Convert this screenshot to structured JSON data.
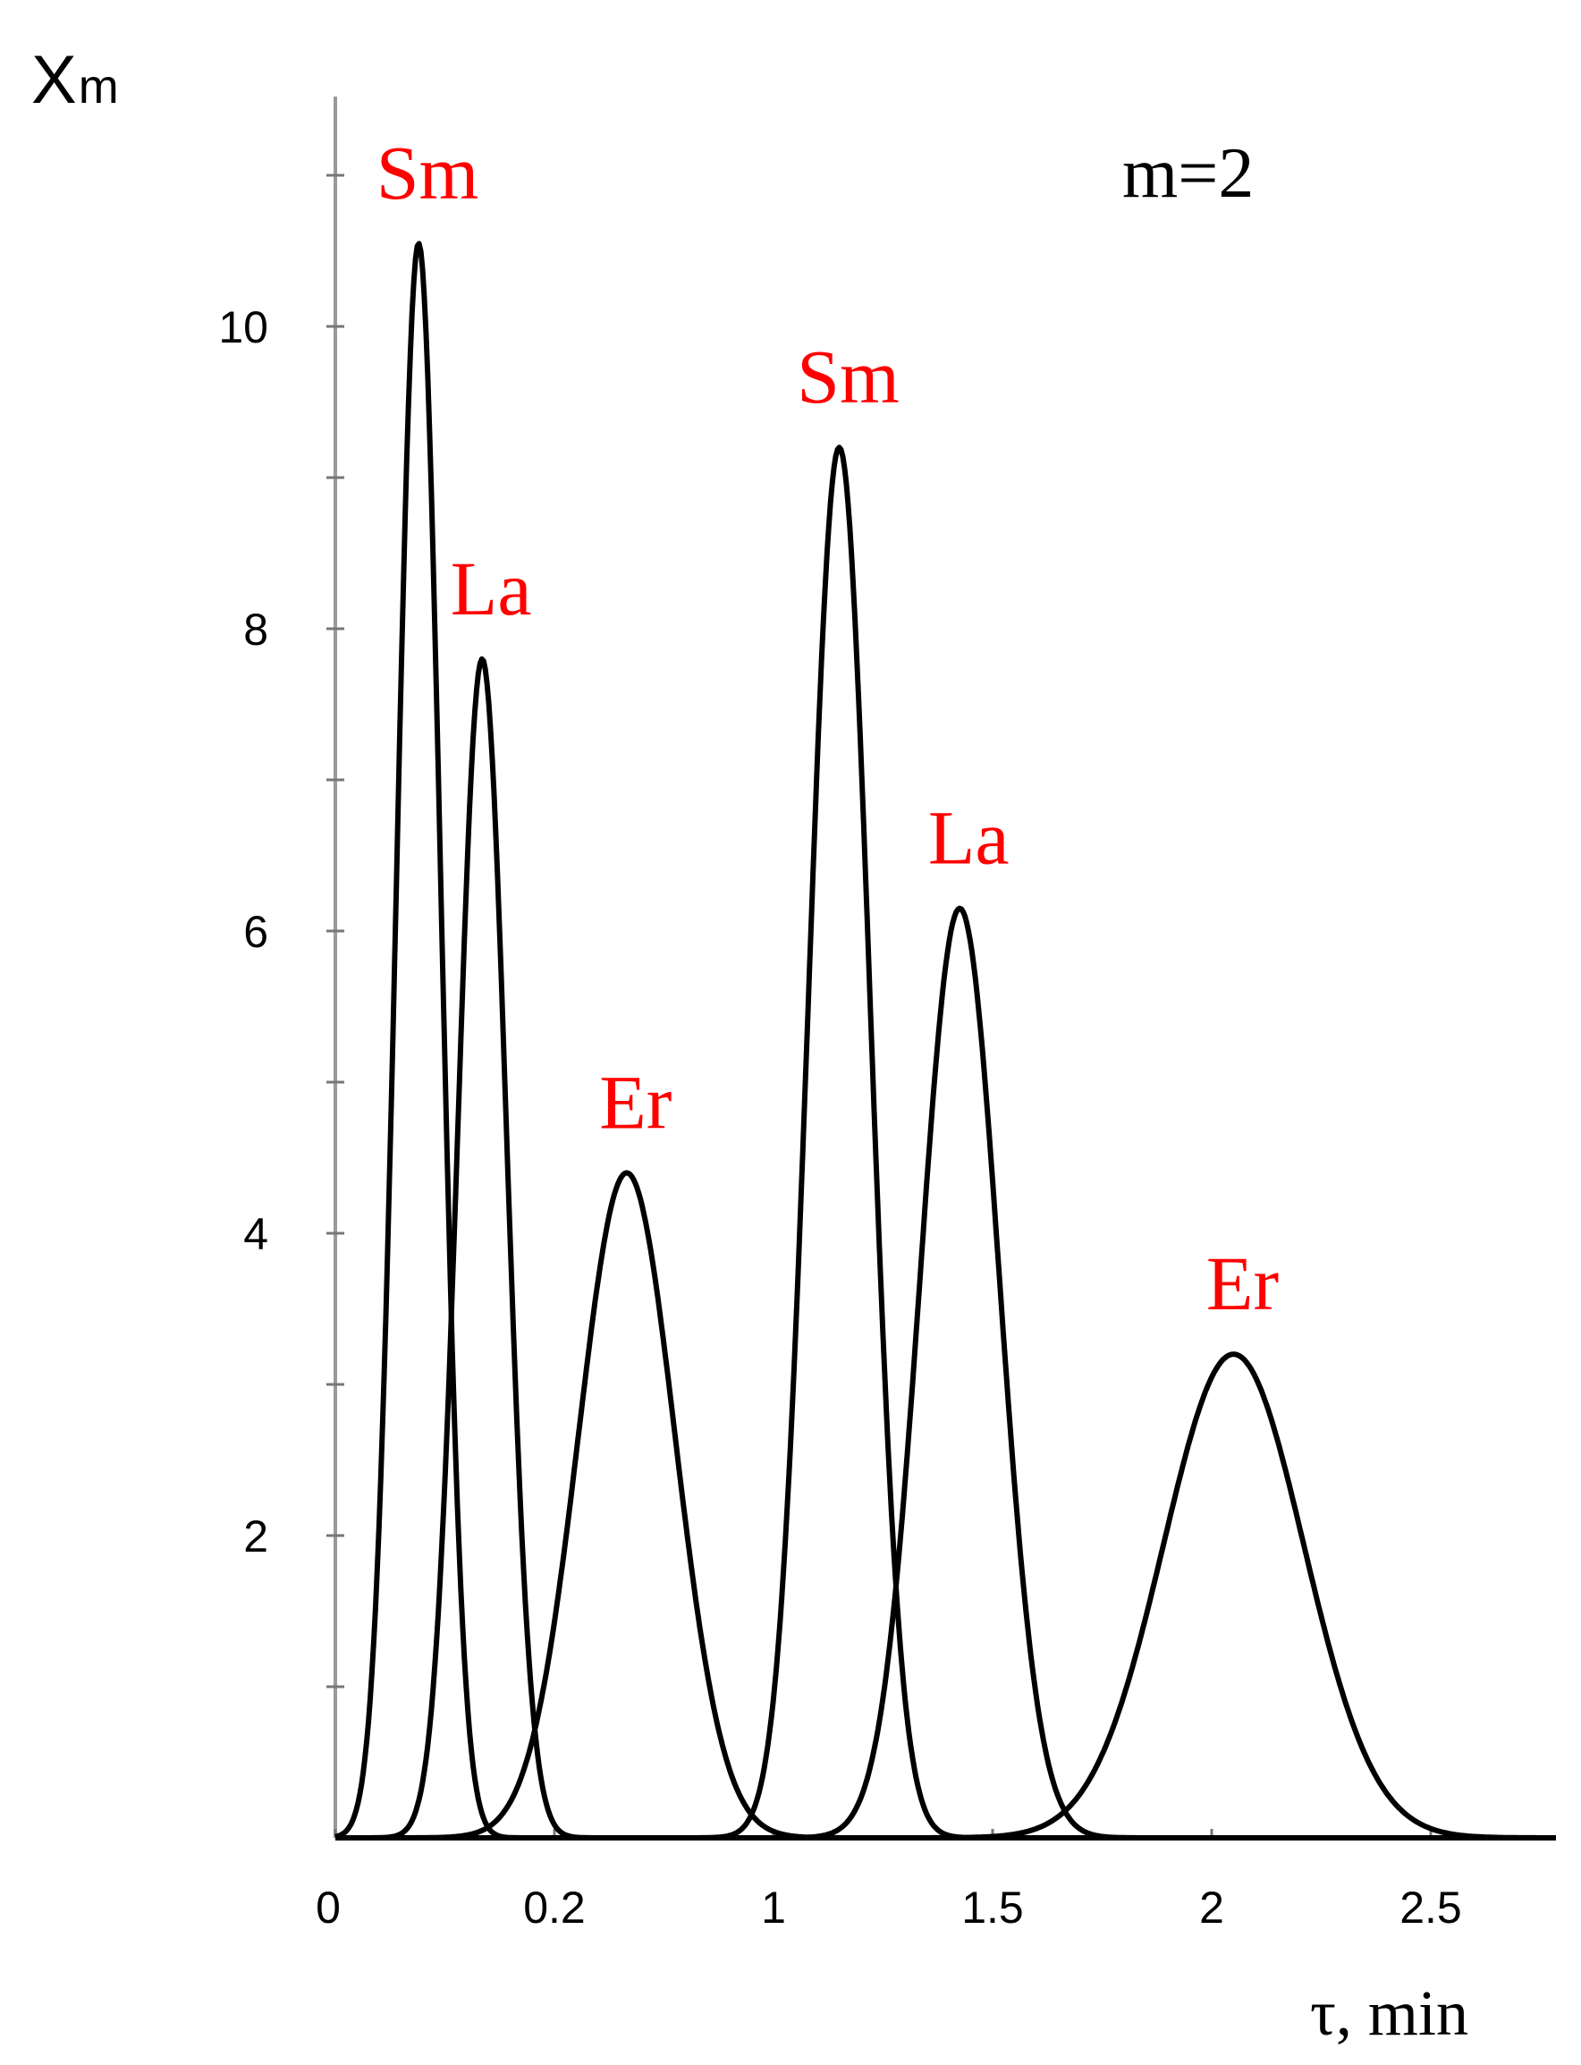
{
  "chart_data": {
    "type": "line",
    "ylabel": "X",
    "ylabel_subscript": "m",
    "xlabel": "τ, min",
    "annotation": "m=2",
    "x_tick_labels": [
      "0",
      "0.2",
      "1",
      "1.5",
      "2",
      "2.5"
    ],
    "y_tick_labels": [
      "2",
      "4",
      "6",
      "8",
      "10"
    ],
    "ylim": [
      0,
      11
    ],
    "grid": false,
    "label_color": "#ff0000",
    "line_color": "#000000",
    "peaks": [
      {
        "label": "Sm",
        "group": "first",
        "center_tick_pos": 0.38,
        "height": 10.55,
        "sigma_tick_units": 0.1
      },
      {
        "label": "La",
        "group": "first",
        "center_tick_pos": 0.67,
        "height": 7.8,
        "sigma_tick_units": 0.11
      },
      {
        "label": "Er",
        "group": "first",
        "center_tick_pos": 1.33,
        "height": 4.4,
        "sigma_tick_units": 0.22
      },
      {
        "label": "Sm",
        "group": "second",
        "center_tick_pos": 2.3,
        "height": 9.2,
        "sigma_tick_units": 0.14
      },
      {
        "label": "La",
        "group": "second",
        "center_tick_pos": 2.85,
        "height": 6.15,
        "sigma_tick_units": 0.18
      },
      {
        "label": "Er",
        "group": "second",
        "center_tick_pos": 4.1,
        "height": 3.2,
        "sigma_tick_units": 0.32
      }
    ]
  }
}
